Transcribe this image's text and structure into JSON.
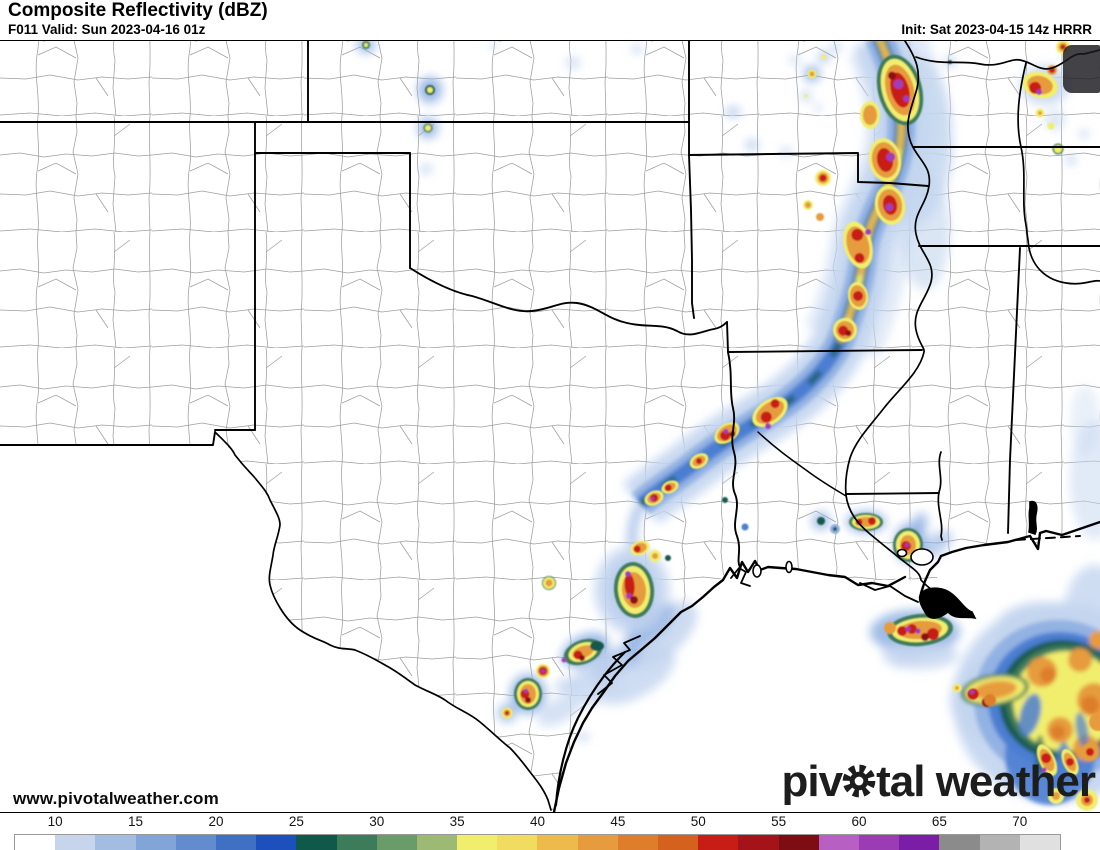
{
  "header": {
    "title": "Composite Reflectivity (dBZ)",
    "valid_label": "F011 Valid: Sun 2023-04-16 01z",
    "init_label": "Init: Sat 2023-04-15 14z HRRR"
  },
  "watermark": "www.pivotalweather.com",
  "logo": {
    "prefix": "piv",
    "suffix": "tal weather"
  },
  "colorbar": {
    "units": "dBZ",
    "min_dbz": 7.5,
    "step_dbz": 2.5,
    "ticks": [
      "10",
      "15",
      "20",
      "25",
      "30",
      "35",
      "40",
      "45",
      "50",
      "55",
      "60",
      "65",
      "70"
    ],
    "cells": [
      {
        "from": 7.5,
        "color": "#ffffff"
      },
      {
        "from": 10,
        "color": "#c6d5ec"
      },
      {
        "from": 12.5,
        "color": "#a2bce2"
      },
      {
        "from": 15,
        "color": "#82a5d7"
      },
      {
        "from": 17.5,
        "color": "#628ccd"
      },
      {
        "from": 20,
        "color": "#3f70c4"
      },
      {
        "from": 22.5,
        "color": "#1d50bc"
      },
      {
        "from": 25,
        "color": "#10584a"
      },
      {
        "from": 27.5,
        "color": "#3c7c5b"
      },
      {
        "from": 30,
        "color": "#699c68"
      },
      {
        "from": 32.5,
        "color": "#9dba74"
      },
      {
        "from": 35,
        "color": "#f1ee6e"
      },
      {
        "from": 37.5,
        "color": "#f2dc60"
      },
      {
        "from": 40,
        "color": "#edba4c"
      },
      {
        "from": 42.5,
        "color": "#e69b3e"
      },
      {
        "from": 45,
        "color": "#de7e2c"
      },
      {
        "from": 47.5,
        "color": "#d5611e"
      },
      {
        "from": 50,
        "color": "#c81c17"
      },
      {
        "from": 52.5,
        "color": "#a41318"
      },
      {
        "from": 55,
        "color": "#7d0d12"
      },
      {
        "from": 57.5,
        "color": "#b75fc3"
      },
      {
        "from": 60,
        "color": "#9c3cb4"
      },
      {
        "from": 62.5,
        "color": "#7b1da6"
      },
      {
        "from": 65,
        "color": "#8b8b8b"
      },
      {
        "from": 67.5,
        "color": "#b3b3b3"
      },
      {
        "from": 70,
        "color": "#e0e0e0"
      }
    ]
  }
}
